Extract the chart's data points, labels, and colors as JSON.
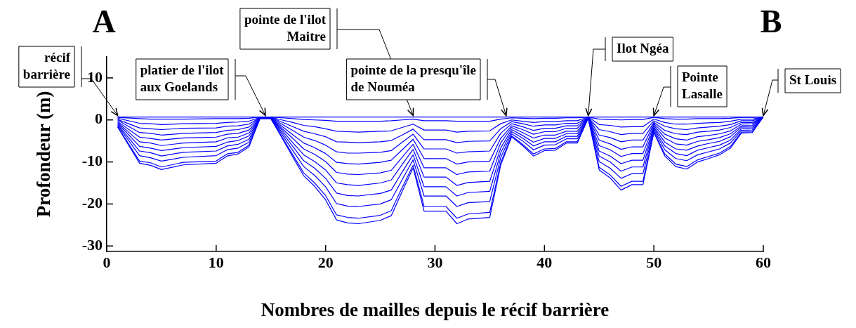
{
  "chart_data": {
    "type": "line",
    "xlabel": "Nombres de mailles depuis le récif barrière",
    "ylabel": "Profondeur (m)",
    "x": [
      1,
      3,
      4,
      5,
      7,
      10,
      11,
      12,
      13,
      14,
      15,
      16,
      17,
      18,
      19,
      20,
      21,
      22,
      23,
      25,
      26,
      27,
      28,
      29,
      31,
      32,
      33,
      35,
      36,
      37,
      38,
      39,
      40,
      41,
      42,
      43,
      44,
      45,
      46,
      47,
      48,
      49,
      50,
      51,
      52,
      53,
      54,
      55,
      56,
      57,
      58,
      59,
      60
    ],
    "xlim": [
      0,
      60
    ],
    "xticks": [
      0,
      10,
      20,
      30,
      40,
      50,
      60
    ],
    "ylim": [
      -31.3,
      15
    ],
    "yticks": [
      -30,
      -20,
      -10,
      0,
      10
    ],
    "grid": false,
    "legend": false,
    "marker": "none",
    "line_style": "solid",
    "series": [
      {
        "color": "#0000ff",
        "x": [
          1,
          60
        ],
        "values": [
          0.7,
          0.7
        ]
      },
      {
        "color": "#0000ff",
        "values": [
          0.6,
          0.3,
          0.2,
          0.2,
          0.2,
          0.3,
          0.3,
          0.3,
          0.4,
          0.7,
          0.7,
          0.5,
          0.3,
          0.1,
          0.0,
          -0.1,
          -0.3,
          -0.3,
          -0.3,
          -0.3,
          -0.2,
          0.0,
          0.2,
          -0.2,
          -0.2,
          -0.3,
          -0.3,
          -0.3,
          0.2,
          0.5,
          0.4,
          0.3,
          0.4,
          0.4,
          0.5,
          0.5,
          0.7,
          0.2,
          0.1,
          0.0,
          0.1,
          0.1,
          0.6,
          0.3,
          0.2,
          0.2,
          0.3,
          0.3,
          0.3,
          0.4,
          0.6,
          0.6,
          0.7
        ]
      },
      {
        "color": "#0000ff",
        "values": [
          0.4,
          -0.8,
          -0.9,
          -1.1,
          -0.9,
          -0.8,
          -0.6,
          -0.5,
          -0.3,
          0.6,
          0.6,
          0.0,
          -0.6,
          -1.3,
          -1.6,
          -2.1,
          -2.7,
          -2.8,
          -2.9,
          -2.7,
          -2.6,
          -1.8,
          -1.0,
          -2.4,
          -2.4,
          -2.9,
          -2.7,
          -2.6,
          -0.9,
          0.0,
          -0.3,
          -0.6,
          -0.4,
          -0.4,
          -0.2,
          -0.2,
          0.7,
          -1.1,
          -1.3,
          -1.7,
          -1.6,
          -1.6,
          0.2,
          -0.6,
          -1.0,
          -1.0,
          -0.8,
          -0.7,
          -0.6,
          -0.3,
          0.2,
          0.2,
          0.7
        ]
      },
      {
        "color": "#0000ff",
        "values": [
          0.1,
          -1.9,
          -2.1,
          -2.3,
          -2.0,
          -1.9,
          -1.5,
          -1.4,
          -1.0,
          0.6,
          0.6,
          -0.5,
          -1.6,
          -2.7,
          -3.3,
          -4.0,
          -5.2,
          -5.3,
          -5.4,
          -5.2,
          -4.9,
          -3.6,
          -2.2,
          -4.7,
          -4.7,
          -5.4,
          -5.1,
          -5.0,
          -2.1,
          -0.4,
          -0.9,
          -1.5,
          -1.2,
          -1.2,
          -0.8,
          -0.8,
          0.6,
          -2.3,
          -2.8,
          -3.5,
          -3.2,
          -3.2,
          -0.2,
          -1.5,
          -2.1,
          -2.3,
          -1.9,
          -1.7,
          -1.5,
          -1.1,
          -0.2,
          -0.2,
          0.7
        ]
      },
      {
        "color": "#0000ff",
        "values": [
          -0.1,
          -3.0,
          -3.2,
          -3.6,
          -3.2,
          -3.0,
          -2.5,
          -2.3,
          -1.7,
          0.6,
          0.6,
          -1.0,
          -2.5,
          -4.1,
          -4.9,
          -6.0,
          -7.6,
          -7.9,
          -7.9,
          -7.7,
          -7.3,
          -5.3,
          -3.4,
          -6.9,
          -6.9,
          -7.9,
          -7.6,
          -7.4,
          -3.2,
          -0.9,
          -1.6,
          -2.5,
          -2.0,
          -2.0,
          -1.4,
          -1.4,
          0.6,
          -3.6,
          -4.2,
          -5.2,
          -4.8,
          -4.8,
          -0.6,
          -2.5,
          -3.3,
          -3.5,
          -2.9,
          -2.7,
          -2.4,
          -1.8,
          -0.6,
          -0.6,
          0.7
        ]
      },
      {
        "color": "#0000ff",
        "values": [
          -0.4,
          -4.1,
          -4.4,
          -4.8,
          -4.3,
          -4.1,
          -3.4,
          -3.2,
          -2.4,
          0.5,
          0.5,
          -1.5,
          -3.5,
          -5.5,
          -6.6,
          -8.0,
          -10.1,
          -10.4,
          -10.5,
          -10.1,
          -9.6,
          -7.1,
          -4.6,
          -9.2,
          -9.2,
          -10.5,
          -10.0,
          -9.8,
          -4.4,
          -1.4,
          -2.3,
          -3.4,
          -2.8,
          -2.8,
          -2.0,
          -2.0,
          0.6,
          -4.8,
          -5.7,
          -7.0,
          -6.4,
          -6.4,
          -0.9,
          -3.4,
          -4.5,
          -4.8,
          -4.0,
          -3.7,
          -3.3,
          -2.6,
          -1.0,
          -0.9,
          0.7
        ]
      },
      {
        "color": "#0000ff",
        "values": [
          -0.6,
          -5.2,
          -5.5,
          -6.1,
          -5.5,
          -5.2,
          -4.3,
          -4.1,
          -3.1,
          0.5,
          0.5,
          -2.0,
          -4.4,
          -6.9,
          -8.2,
          -9.9,
          -12.5,
          -12.9,
          -13.0,
          -12.6,
          -12.0,
          -8.9,
          -5.8,
          -11.4,
          -11.4,
          -13.0,
          -12.4,
          -12.2,
          -5.5,
          -1.8,
          -3.0,
          -4.3,
          -3.6,
          -3.6,
          -2.7,
          -2.7,
          0.5,
          -6.1,
          -7.1,
          -8.7,
          -8.0,
          -8.0,
          -1.3,
          -4.3,
          -5.7,
          -6.0,
          -5.1,
          -4.7,
          -4.2,
          -3.3,
          -1.4,
          -1.3,
          0.7
        ]
      },
      {
        "color": "#0000ff",
        "values": [
          -0.8,
          -6.3,
          -6.7,
          -7.3,
          -6.6,
          -6.3,
          -5.3,
          -4.9,
          -3.8,
          0.4,
          0.4,
          -2.4,
          -5.4,
          -8.3,
          -9.9,
          -11.9,
          -15.0,
          -15.4,
          -15.6,
          -15.0,
          -14.3,
          -10.6,
          -7.0,
          -13.6,
          -13.6,
          -15.6,
          -14.9,
          -14.6,
          -6.7,
          -2.3,
          -3.7,
          -5.3,
          -4.4,
          -4.4,
          -3.3,
          -3.3,
          0.5,
          -7.4,
          -8.6,
          -10.4,
          -9.6,
          -9.6,
          -1.7,
          -5.3,
          -6.9,
          -7.2,
          -6.2,
          -5.6,
          -5.1,
          -4.0,
          -1.7,
          -1.7,
          0.7
        ]
      },
      {
        "color": "#0000ff",
        "values": [
          -1.1,
          -7.4,
          -7.8,
          -8.6,
          -7.7,
          -7.4,
          -6.2,
          -5.8,
          -4.6,
          0.4,
          0.4,
          -2.9,
          -6.3,
          -9.7,
          -11.5,
          -13.9,
          -17.4,
          -18.0,
          -18.1,
          -17.5,
          -16.7,
          -12.4,
          -8.3,
          -15.9,
          -15.9,
          -18.1,
          -17.3,
          -17.0,
          -7.8,
          -2.8,
          -4.3,
          -6.2,
          -5.2,
          -5.2,
          -3.9,
          -3.9,
          0.5,
          -8.6,
          -10.0,
          -12.2,
          -11.2,
          -11.2,
          -2.0,
          -6.2,
          -8.0,
          -8.5,
          -7.2,
          -6.6,
          -6.0,
          -4.8,
          -2.1,
          -2.0,
          0.7
        ]
      },
      {
        "color": "#0000ff",
        "values": [
          -1.3,
          -8.5,
          -9.0,
          -9.8,
          -8.9,
          -8.5,
          -7.1,
          -6.7,
          -5.3,
          0.4,
          0.4,
          -3.4,
          -7.3,
          -11.1,
          -13.2,
          -15.9,
          -19.9,
          -20.5,
          -20.6,
          -20.0,
          -19.0,
          -14.2,
          -9.5,
          -18.1,
          -18.1,
          -20.6,
          -19.7,
          -19.4,
          -9.0,
          -3.3,
          -5.0,
          -7.1,
          -6.0,
          -5.9,
          -4.5,
          -4.5,
          0.4,
          -9.9,
          -11.5,
          -13.9,
          -12.8,
          -12.8,
          -2.4,
          -7.1,
          -9.2,
          -9.7,
          -8.3,
          -7.6,
          -6.9,
          -5.5,
          -2.5,
          -2.4,
          0.7
        ]
      },
      {
        "color": "#0000ff",
        "values": [
          -1.6,
          -9.8,
          -10.2,
          -11.2,
          -10.1,
          -9.8,
          -8.1,
          -7.7,
          -6.0,
          0.3,
          0.3,
          -4.0,
          -8.3,
          -12.6,
          -15.0,
          -18.0,
          -22.6,
          -23.2,
          -23.4,
          -22.7,
          -21.6,
          -16.1,
          -10.8,
          -20.6,
          -20.6,
          -23.4,
          -22.4,
          -22.0,
          -10.2,
          -3.8,
          -5.8,
          -8.1,
          -6.9,
          -6.8,
          -5.2,
          -5.2,
          0.4,
          -11.3,
          -13.1,
          -15.8,
          -14.6,
          -14.6,
          -2.8,
          -8.1,
          -10.5,
          -11.1,
          -9.5,
          -8.7,
          -7.9,
          -6.3,
          -2.9,
          -2.8,
          0.7
        ]
      },
      {
        "color": "#0000ff",
        "values": [
          -1.7,
          -10.3,
          -10.8,
          -11.8,
          -10.7,
          -10.3,
          -8.6,
          -8.1,
          -6.4,
          0.3,
          0.3,
          -4.2,
          -8.8,
          -13.3,
          -15.8,
          -19.0,
          -23.8,
          -24.5,
          -24.7,
          -23.9,
          -22.8,
          -17.0,
          -11.4,
          -21.7,
          -21.7,
          -24.7,
          -23.6,
          -23.2,
          -10.8,
          -4.0,
          -6.1,
          -8.6,
          -7.3,
          -7.2,
          -5.5,
          -5.5,
          0.4,
          -11.9,
          -13.8,
          -16.7,
          -15.4,
          -15.4,
          -3.0,
          -8.6,
          -11.1,
          -11.7,
          -10.0,
          -9.2,
          -8.3,
          -6.7,
          -3.1,
          -3.0,
          0.7
        ]
      }
    ],
    "annotations": [
      "A",
      "B",
      {
        "text": "récif\nbarrière",
        "x": 1,
        "y": 0.7
      },
      {
        "text": "platier de l'ilot\naux Goelands",
        "x": 14.5,
        "y": 0.7
      },
      {
        "text": "pointe de l'ilot\nMaitre",
        "x": 28,
        "y": 0.7
      },
      {
        "text": "pointe de la presqu'île\nde Nouméa",
        "x": 36.5,
        "y": 0.7
      },
      {
        "text": "Ilot Ngéa",
        "x": 44,
        "y": 0.7
      },
      {
        "text": "Pointe\nLasalle",
        "x": 50,
        "y": 0.7
      },
      {
        "text": "St Louis",
        "x": 60,
        "y": 0.7
      }
    ]
  }
}
